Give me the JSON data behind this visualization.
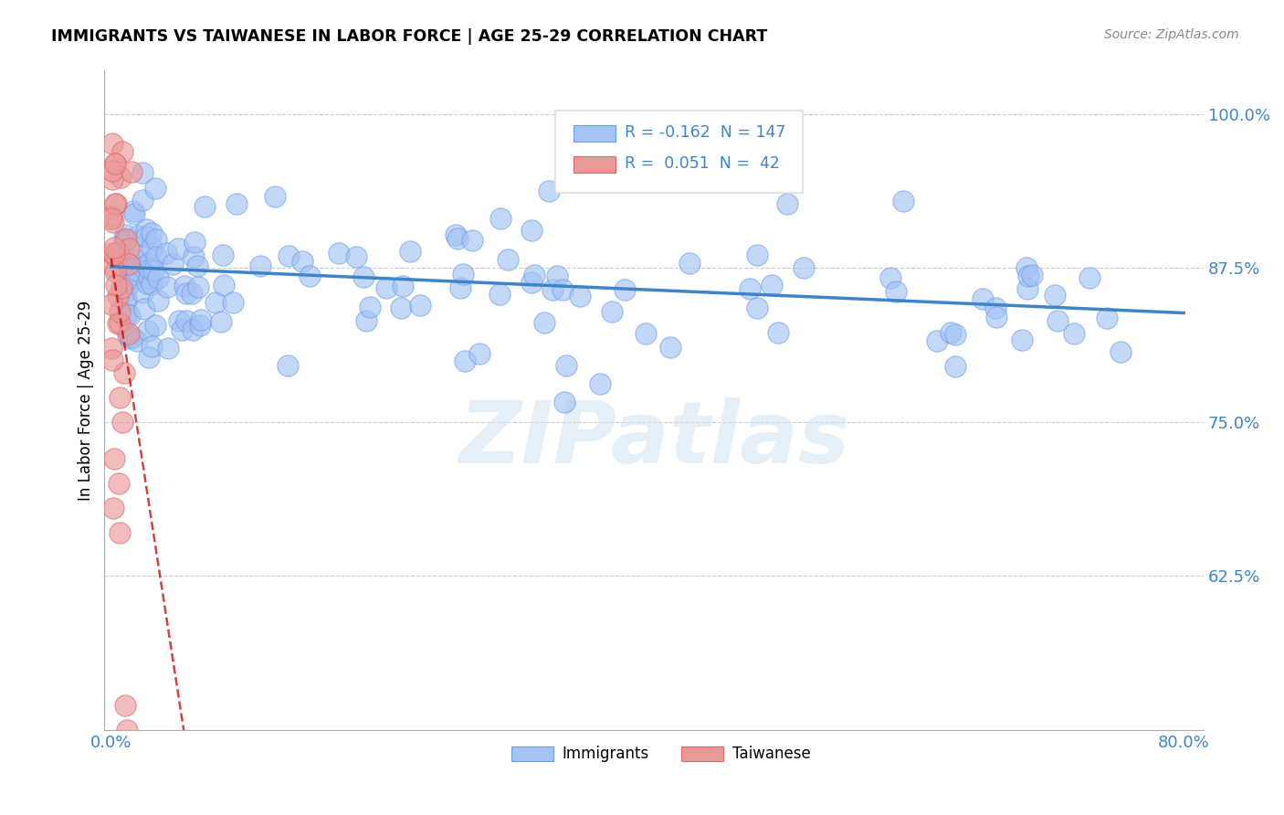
{
  "title": "IMMIGRANTS VS TAIWANESE IN LABOR FORCE | AGE 25-29 CORRELATION CHART",
  "source": "Source: ZipAtlas.com",
  "ylabel": "In Labor Force | Age 25-29",
  "watermark": "ZIPatlas",
  "xlim": [
    -0.005,
    0.815
  ],
  "ylim": [
    0.5,
    1.035
  ],
  "yticks": [
    0.625,
    0.75,
    0.875,
    1.0
  ],
  "ytick_labels": [
    "62.5%",
    "75.0%",
    "87.5%",
    "100.0%"
  ],
  "xticks": [
    0.0,
    0.1,
    0.2,
    0.3,
    0.4,
    0.5,
    0.6,
    0.7,
    0.8
  ],
  "xtick_labels": [
    "0.0%",
    "",
    "",
    "",
    "",
    "",
    "",
    "",
    "80.0%"
  ],
  "immigrants_R": -0.162,
  "immigrants_N": 147,
  "taiwanese_R": 0.051,
  "taiwanese_N": 42,
  "blue_color": "#a4c2f4",
  "blue_edge_color": "#6d9eeb",
  "pink_color": "#ea9999",
  "pink_edge_color": "#e06666",
  "blue_line_color": "#3d85c8",
  "pink_line_color": "#cc0000",
  "axis_color": "#3d85c8",
  "grid_color": "#cccccc",
  "legend_R_color": "#3d85c8",
  "legend_N_color": "#cc0000"
}
